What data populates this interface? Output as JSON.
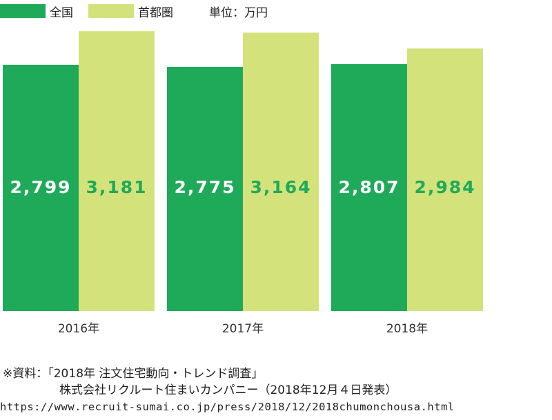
{
  "legend": {
    "items": [
      {
        "label": "全国",
        "color": "#1faa59"
      },
      {
        "label": "首都圏",
        "color": "#d4e27c"
      }
    ],
    "unit": "単位：万円"
  },
  "chart_data": {
    "type": "bar",
    "categories": [
      "2016年",
      "2017年",
      "2018年"
    ],
    "series": [
      {
        "name": "全国",
        "values": [
          2799,
          2775,
          2807
        ],
        "color": "#1faa59",
        "label_color": "#ffffff"
      },
      {
        "name": "首都圏",
        "values": [
          3181,
          3164,
          2984
        ],
        "color": "#d4e27c",
        "label_color": "#1faa59"
      }
    ],
    "data_labels": [
      [
        "2,799",
        "2,775",
        "2,807"
      ],
      [
        "3,181",
        "3,164",
        "2,984"
      ]
    ],
    "ylim": [
      0,
      3300
    ],
    "grid": false
  },
  "source": {
    "line1": "※資料：「2018年 注文住宅動向・トレンド調査」",
    "line2": "株式会社リクルート住まいカンパニー（2018年12月４日発表）",
    "url": "https://www.recruit-sumai.co.jp/press/2018/12/2018chumonchousa.html"
  }
}
